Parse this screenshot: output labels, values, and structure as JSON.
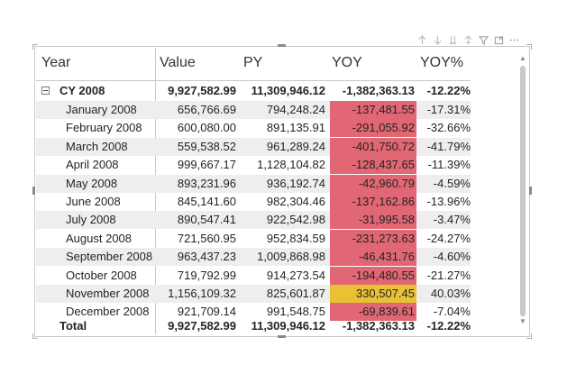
{
  "toolbar": {
    "icons": [
      "sort-up-icon",
      "sort-down-icon",
      "drill-down-icon",
      "expand-hierarchy-icon",
      "filter-icon",
      "focus-mode-icon",
      "more-options-icon"
    ]
  },
  "columns": {
    "year": "Year",
    "value": "Value",
    "py": "PY",
    "yoy": "YOY",
    "yoy_pct": "YOY%"
  },
  "group": {
    "label": "CY 2008",
    "value": "9,927,582.99",
    "py": "11,309,946.12",
    "yoy": "-1,382,363.13",
    "yoy_pct": "-12.22%"
  },
  "rows": [
    {
      "label": "January 2008",
      "value": "656,766.69",
      "py": "794,248.24",
      "yoy": "-137,481.55",
      "yoy_pct": "-17.31%",
      "yoy_color": "#e06773"
    },
    {
      "label": "February 2008",
      "value": "600,080.00",
      "py": "891,135.91",
      "yoy": "-291,055.92",
      "yoy_pct": "-32.66%",
      "yoy_color": "#e06773"
    },
    {
      "label": "March 2008",
      "value": "559,538.52",
      "py": "961,289.24",
      "yoy": "-401,750.72",
      "yoy_pct": "-41.79%",
      "yoy_color": "#e06773"
    },
    {
      "label": "April 2008",
      "value": "999,667.17",
      "py": "1,128,104.82",
      "yoy": "-128,437.65",
      "yoy_pct": "-11.39%",
      "yoy_color": "#e06773"
    },
    {
      "label": "May 2008",
      "value": "893,231.96",
      "py": "936,192.74",
      "yoy": "-42,960.79",
      "yoy_pct": "-4.59%",
      "yoy_color": "#e06773"
    },
    {
      "label": "June 2008",
      "value": "845,141.60",
      "py": "982,304.46",
      "yoy": "-137,162.86",
      "yoy_pct": "-13.96%",
      "yoy_color": "#e06773"
    },
    {
      "label": "July 2008",
      "value": "890,547.41",
      "py": "922,542.98",
      "yoy": "-31,995.58",
      "yoy_pct": "-3.47%",
      "yoy_color": "#e06773"
    },
    {
      "label": "August 2008",
      "value": "721,560.95",
      "py": "952,834.59",
      "yoy": "-231,273.63",
      "yoy_pct": "-24.27%",
      "yoy_color": "#e06773"
    },
    {
      "label": "September 2008",
      "value": "963,437.23",
      "py": "1,009,868.98",
      "yoy": "-46,431.76",
      "yoy_pct": "-4.60%",
      "yoy_color": "#e06773"
    },
    {
      "label": "October 2008",
      "value": "719,792.99",
      "py": "914,273.54",
      "yoy": "-194,480.55",
      "yoy_pct": "-21.27%",
      "yoy_color": "#e06773"
    },
    {
      "label": "November 2008",
      "value": "1,156,109.32",
      "py": "825,601.87",
      "yoy": "330,507.45",
      "yoy_pct": "40.03%",
      "yoy_color": "#e8c234"
    },
    {
      "label": "December 2008",
      "value": "921,709.14",
      "py": "991,548.75",
      "yoy": "-69,839.61",
      "yoy_pct": "-7.04%",
      "yoy_color": "#e06773"
    }
  ],
  "total": {
    "label": "Total",
    "value": "9,927,582.99",
    "py": "11,309,946.12",
    "yoy": "-1,382,363.13",
    "yoy_pct": "-12.22%"
  },
  "colors": {
    "negative": "#e06773",
    "positive": "#e8c234",
    "header_border": "#c8c8c8",
    "column_divider": "#a9d2f0",
    "alt_row": "#eeeeee"
  }
}
